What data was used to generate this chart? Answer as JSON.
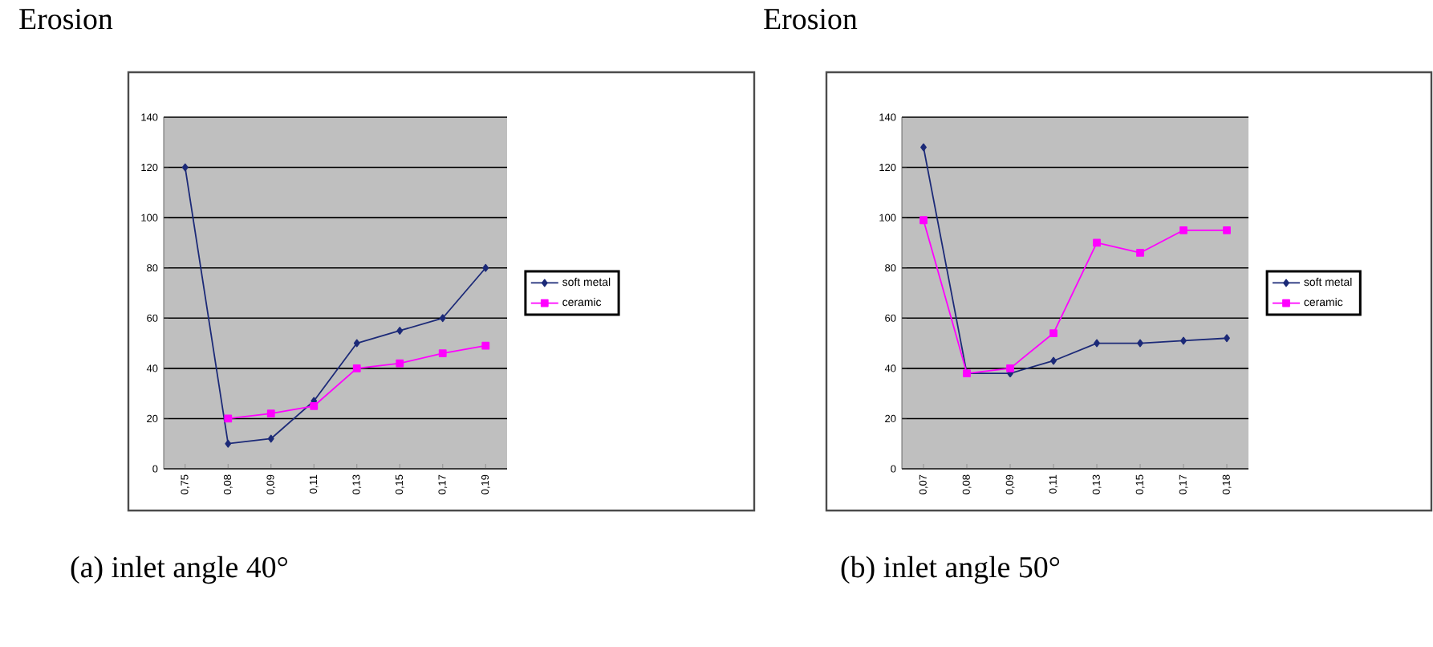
{
  "chart_data": [
    {
      "type": "line",
      "ylabel": "Erosion",
      "categories": [
        "0,75",
        "0,08",
        "0,09",
        "0,11",
        "0,13",
        "0,15",
        "0,17",
        "0,19"
      ],
      "series": [
        {
          "name": "soft metal",
          "color": "#1c2a78",
          "marker": "diamond",
          "values": [
            120,
            10,
            12,
            27,
            50,
            55,
            60,
            80
          ]
        },
        {
          "name": "ceramic",
          "color": "#ff00ff",
          "marker": "square",
          "values": [
            null,
            20,
            22,
            25,
            40,
            42,
            46,
            49
          ]
        }
      ],
      "ylim": [
        0,
        140
      ],
      "yticks": [
        0,
        20,
        40,
        60,
        80,
        100,
        120,
        140
      ],
      "grid": "y",
      "legend": "right",
      "annotations": [
        "(a) inlet angle 40°"
      ]
    },
    {
      "type": "line",
      "ylabel": "Erosion",
      "categories": [
        "0,07",
        "0,08",
        "0,09",
        "0,11",
        "0,13",
        "0,15",
        "0,17",
        "0,18"
      ],
      "series": [
        {
          "name": "soft metal",
          "color": "#1c2a78",
          "marker": "diamond",
          "values": [
            128,
            38,
            38,
            43,
            50,
            50,
            51,
            52
          ]
        },
        {
          "name": "ceramic",
          "color": "#ff00ff",
          "marker": "square",
          "values": [
            99,
            38,
            40,
            54,
            90,
            86,
            95,
            95
          ]
        }
      ],
      "ylim": [
        0,
        140
      ],
      "yticks": [
        0,
        20,
        40,
        60,
        80,
        100,
        120,
        140
      ],
      "grid": "y",
      "legend": "right",
      "annotations": [
        "(b) inlet angle 50°"
      ]
    }
  ]
}
